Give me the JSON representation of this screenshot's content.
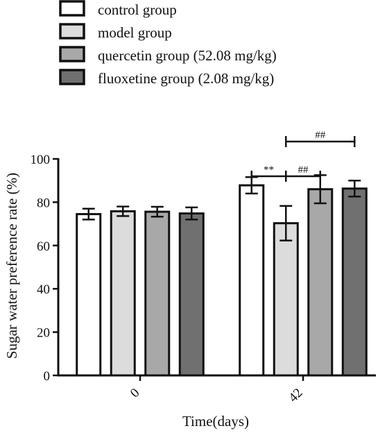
{
  "chart_data": {
    "type": "bar",
    "xlabel": "Time(days)",
    "ylabel": "Sugar water preference rate (%)",
    "categories": [
      "0",
      "42"
    ],
    "ylim": [
      0,
      100
    ],
    "yticks": [
      0,
      20,
      40,
      60,
      80,
      100
    ],
    "grid": false,
    "legend_position": "top-left",
    "series": [
      {
        "name": "control group",
        "color": "#ffffff",
        "values": [
          74.5,
          87.8
        ],
        "errors": [
          2.5,
          3.8
        ]
      },
      {
        "name": "model group",
        "color": "#dcdcdc",
        "values": [
          75.8,
          70.3
        ],
        "errors": [
          2.2,
          8.0
        ]
      },
      {
        "name": "quercetin group (52.08 mg/kg)",
        "color": "#a8a8a8",
        "values": [
          75.6,
          86.0
        ],
        "errors": [
          2.3,
          6.5
        ]
      },
      {
        "name": "fluoxetine group (2.08 mg/kg)",
        "color": "#707070",
        "values": [
          74.8,
          86.3
        ],
        "errors": [
          2.8,
          3.7
        ]
      }
    ],
    "annotations": [
      {
        "text": "**",
        "category": "42",
        "from_series": 0,
        "to_series": 1,
        "y": 92
      },
      {
        "text": "##",
        "category": "42",
        "from_series": 1,
        "to_series": 2,
        "y": 92
      },
      {
        "text": "##",
        "category": "42",
        "from_series": 1,
        "to_series": 3,
        "y": 108
      }
    ]
  }
}
